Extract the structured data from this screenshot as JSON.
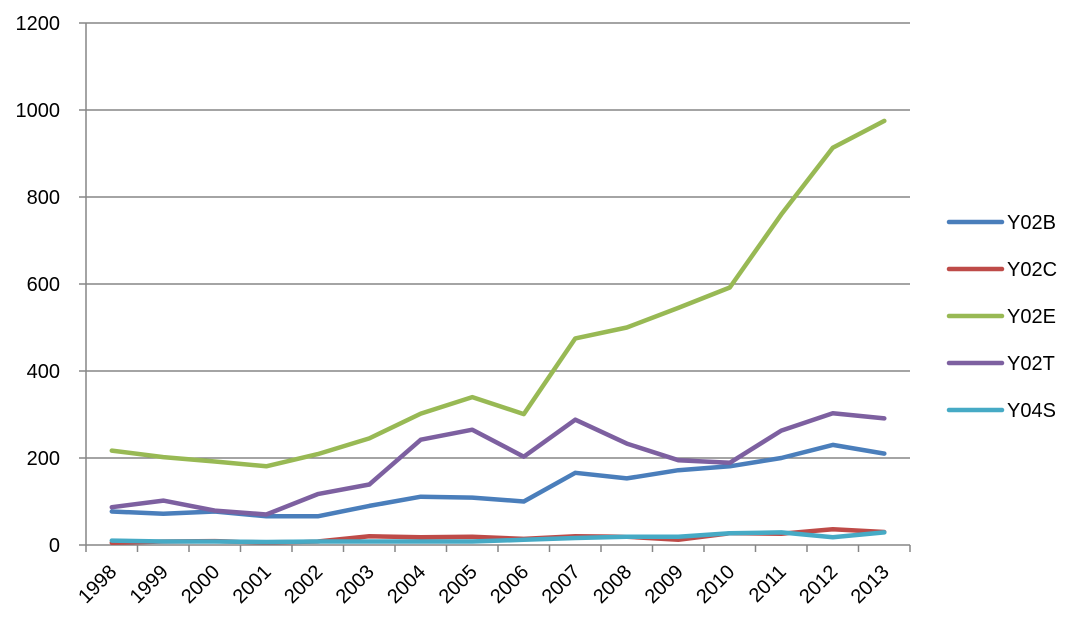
{
  "chart_data": {
    "type": "line",
    "title": "",
    "xlabel": "",
    "ylabel": "",
    "categories": [
      "1998",
      "1999",
      "2000",
      "2001",
      "2002",
      "2003",
      "2004",
      "2005",
      "2006",
      "2007",
      "2008",
      "2009",
      "2010",
      "2011",
      "2012",
      "2013"
    ],
    "ylim": [
      0,
      1200
    ],
    "yticks": [
      0,
      200,
      400,
      600,
      800,
      1000,
      1200
    ],
    "grid": true,
    "legend_position": "right",
    "series": [
      {
        "name": "Y02B",
        "color": "#4a7ebb",
        "values": [
          77,
          72,
          77,
          66,
          66,
          90,
          111,
          109,
          100,
          166,
          153,
          172,
          181,
          200,
          230,
          210
        ]
      },
      {
        "name": "Y02C",
        "color": "#be4b48",
        "values": [
          5,
          8,
          9,
          6,
          8,
          20,
          18,
          19,
          14,
          20,
          19,
          12,
          27,
          26,
          36,
          30
        ]
      },
      {
        "name": "Y02E",
        "color": "#98b954",
        "values": [
          217,
          202,
          192,
          181,
          209,
          245,
          302,
          340,
          301,
          475,
          500,
          545,
          592,
          760,
          913,
          975
        ]
      },
      {
        "name": "Y02T",
        "color": "#7d60a0",
        "values": [
          87,
          102,
          79,
          70,
          117,
          139,
          242,
          265,
          203,
          288,
          233,
          195,
          189,
          263,
          303,
          291
        ]
      },
      {
        "name": "Y04S",
        "color": "#46aac5",
        "values": [
          10,
          8,
          8,
          7,
          8,
          8,
          8,
          8,
          12,
          16,
          19,
          19,
          27,
          29,
          18,
          29
        ]
      }
    ]
  }
}
